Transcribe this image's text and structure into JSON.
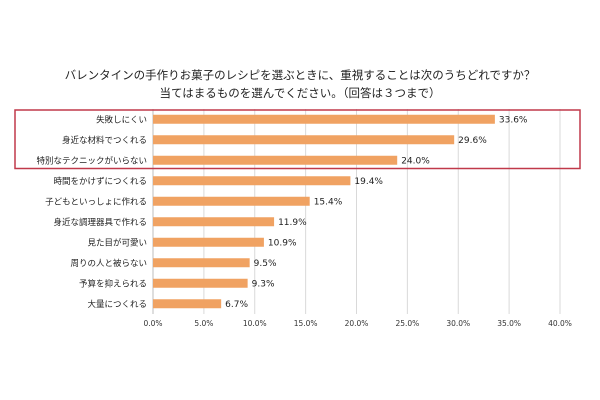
{
  "chart_data": {
    "type": "bar",
    "orientation": "horizontal",
    "title": "バレンタインの手作りお菓子のレシピを選ぶときに、重視することは次のうちどれですか？",
    "subtitle": "当てはまるものを選んでください。（回答は３つまで）",
    "categories": [
      "失敗しにくい",
      "身近な材料でつくれる",
      "特別なテクニックがいらない",
      "時間をかけずにつくれる",
      "子どもといっしょに作れる",
      "身近な調理器具で作れる",
      "見た目が可愛い",
      "周りの人と被らない",
      "予算を抑えられる",
      "大量につくれる"
    ],
    "values": [
      33.6,
      29.6,
      24.0,
      19.4,
      15.4,
      11.9,
      10.9,
      9.5,
      9.3,
      6.7
    ],
    "value_labels": [
      "33.6%",
      "29.6%",
      "24.0%",
      "19.4%",
      "15.4%",
      "11.9%",
      "10.9%",
      "9.5%",
      "9.3%",
      "6.7%"
    ],
    "x_ticks": [
      "0.0%",
      "5.0%",
      "10.0%",
      "15.0%",
      "20.0%",
      "25.0%",
      "30.0%",
      "35.0%",
      "40.0%"
    ],
    "xlim": [
      0,
      40
    ],
    "highlight_count": 3,
    "colors": {
      "bar": "#f0a262",
      "highlight_box": "#c0394a",
      "grid": "#d9d9d9"
    }
  }
}
